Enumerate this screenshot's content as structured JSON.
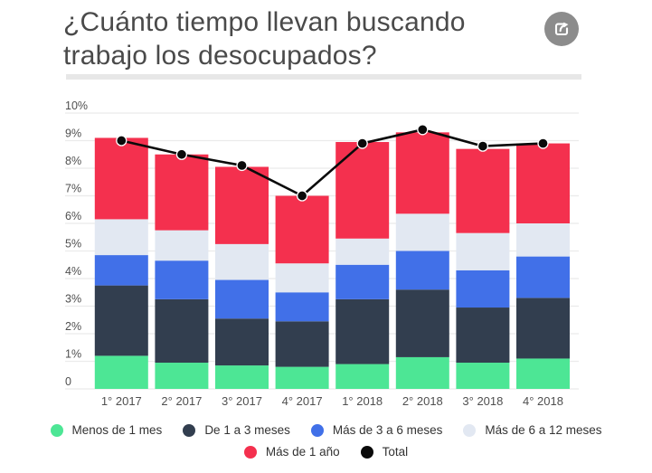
{
  "header": {
    "title_lines": [
      "¿Cuánto tiempo llevan buscando",
      "trabajo los desocupados?"
    ],
    "share_button": "share"
  },
  "colors": {
    "title_text": "#4a4a4a",
    "axis_text": "#4f4f4f",
    "gridline": "#ebebeb",
    "legend_text": "#333333",
    "share_button_bg": "#8c8c8c",
    "divider_strip": "#e7e7e7",
    "total_line": "#0a0a0a"
  },
  "chart_data": {
    "type": "bar",
    "stacked": true,
    "title": "¿Cuánto tiempo llevan buscando trabajo los desocupados?",
    "categories": [
      "1° 2017",
      "2° 2017",
      "3° 2017",
      "4° 2017",
      "1° 2018",
      "2° 2018",
      "3° 2018",
      "4° 2018"
    ],
    "series": [
      {
        "name": "Menos de 1 mes",
        "color": "#4DE695",
        "values": [
          1.2,
          0.95,
          0.85,
          0.8,
          0.9,
          1.15,
          0.95,
          1.1
        ]
      },
      {
        "name": "De 1 a 3 meses",
        "color": "#323E4F",
        "values": [
          2.55,
          2.3,
          1.7,
          1.65,
          2.35,
          2.45,
          2.0,
          2.2
        ]
      },
      {
        "name": "Más de 3 a 6 meses",
        "color": "#4170E8",
        "values": [
          1.1,
          1.4,
          1.4,
          1.05,
          1.25,
          1.4,
          1.35,
          1.5
        ]
      },
      {
        "name": "Más de 6 a 12 meses",
        "color": "#E2E8F2",
        "values": [
          1.3,
          1.1,
          1.3,
          1.05,
          0.95,
          1.35,
          1.35,
          1.2
        ]
      },
      {
        "name": "Más de 1 año",
        "color": "#F4304E",
        "values": [
          2.95,
          2.75,
          2.8,
          2.45,
          3.5,
          2.95,
          3.05,
          2.9
        ]
      }
    ],
    "line_series": {
      "name": "Total",
      "color": "#0a0a0a",
      "values": [
        9.0,
        8.5,
        8.1,
        7.0,
        8.9,
        9.4,
        8.8,
        8.9
      ]
    },
    "ylim": [
      0,
      10
    ],
    "ytick_labels": [
      "0",
      "1%",
      "2%",
      "3%",
      "4%",
      "5%",
      "6%",
      "7%",
      "8%",
      "9%",
      "10%"
    ],
    "xlabel": "",
    "ylabel": "",
    "grid": true,
    "legend_position": "bottom"
  }
}
